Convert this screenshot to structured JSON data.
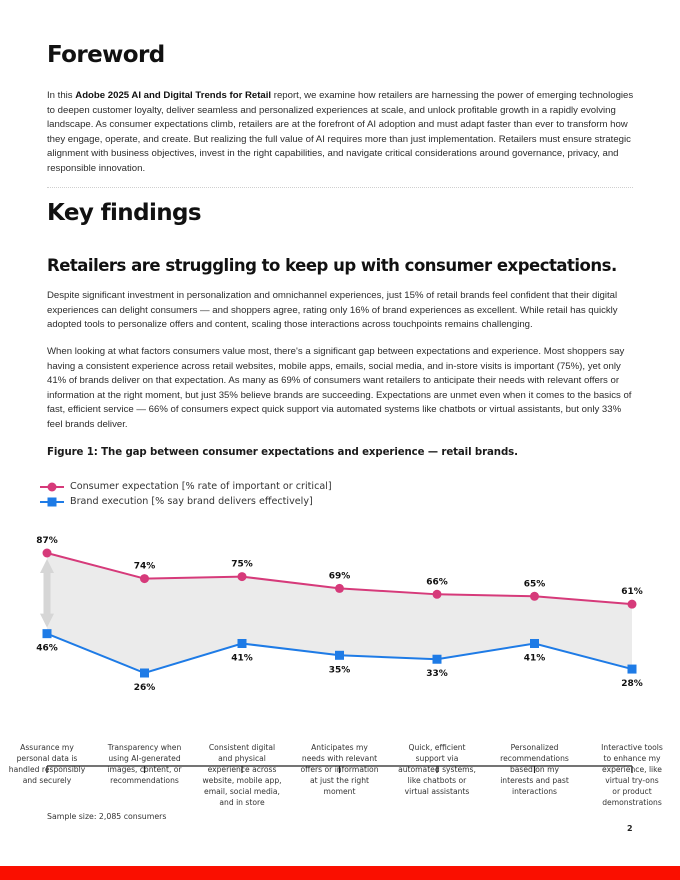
{
  "foreword": {
    "title": "Foreword",
    "intro_prefix": "In this ",
    "intro_bold": "Adobe 2025 AI and Digital Trends for Retail",
    "intro_rest": " report, we examine how retailers are harnessing the power of emerging technologies to deepen customer loyalty, deliver seamless and personalized experiences at scale, and unlock profitable growth in a rapidly evolving landscape. As consumer expectations climb, retailers are at the forefront of AI adoption and must adapt faster than ever to transform how they engage, operate, and create. But realizing the full value of AI requires more than just implementation. Retailers must ensure strategic alignment with business objectives, invest in the right capabilities, and navigate critical considerations around governance, privacy, and responsible innovation."
  },
  "key_findings": {
    "title": "Key findings",
    "subtitle": "Retailers are struggling to keep up with consumer expectations.",
    "paragraph_1": "Despite significant investment in personalization and omnichannel experiences, just 15% of retail brands feel confident that their digital experiences can delight consumers — and shoppers agree, rating only 16% of brand experiences as excellent. While retail has quickly adopted tools to personalize offers and content, scaling those interactions across touchpoints remains challenging.",
    "paragraph_2": "When looking at what factors consumers value most, there's a significant gap between expectations and experience. Most shoppers say having a consistent experience across retail websites, mobile apps, emails, social media, and in-store visits is important (75%), yet only 41% of brands deliver on that expectation. As many as 69% of consumers want retailers to anticipate their needs with relevant offers or information at the right moment, but just 35% believe brands are succeeding. Expectations are unmet even when it comes to the basics of fast, efficient service — 66% of consumers expect quick support via automated systems like chatbots or virtual assistants, but only 33% feel brands deliver."
  },
  "figure": {
    "sample_size": "Sample size: 2,085 consumers"
  },
  "colors": {
    "consumer": "#d63a7a",
    "brand": "#1e7be6",
    "gap_fill": "#ebebeb",
    "gap_arrow": "#d6d6d6",
    "footer": "#fa0f00"
  },
  "page_number": "2",
  "chart_data": {
    "type": "line",
    "title": "Figure 1: The gap between consumer expectations and experience — retail brands.",
    "xlabel": "",
    "ylabel": "",
    "ylim": [
      0,
      100
    ],
    "grid": false,
    "legend_placement": "top-left",
    "categories": [
      [
        "Assurance my",
        "personal data is",
        "handled responsibly",
        "and securely"
      ],
      [
        "Transparency when",
        "using AI-generated",
        "images, content, or",
        "recommendations"
      ],
      [
        "Consistent digital",
        "and physical",
        "experience across",
        "website, mobile app,",
        "email, social media,",
        "and in store"
      ],
      [
        "Anticipates my",
        "needs with relevant",
        "offers or information",
        "at just the right",
        "moment"
      ],
      [
        "Quick, efficient",
        "support via",
        "automated systems,",
        "like chatbots or",
        "virtual assistants"
      ],
      [
        "Personalized",
        "recommendations",
        "based on my",
        "interests and past",
        "interactions"
      ],
      [
        "Interactive tools",
        "to enhance my",
        "experience, like",
        "virtual try-ons",
        "or product",
        "demonstrations"
      ]
    ],
    "series": [
      {
        "name": "Consumer expectation [% rate of important or critical]",
        "marker": "circle",
        "values": [
          87,
          74,
          75,
          69,
          66,
          65,
          61
        ],
        "labels": [
          "87%",
          "74%",
          "75%",
          "69%",
          "66%",
          "65%",
          "61%"
        ]
      },
      {
        "name": "Brand execution [% say brand delivers effectively]",
        "marker": "square",
        "values": [
          46,
          26,
          41,
          35,
          33,
          41,
          28
        ],
        "labels": [
          "46%",
          "26%",
          "41%",
          "35%",
          "33%",
          "41%",
          "28%"
        ]
      }
    ],
    "annotations": [
      "Shaded gap area between the two series",
      "Double-headed arrow indicating the gap at first category"
    ]
  }
}
